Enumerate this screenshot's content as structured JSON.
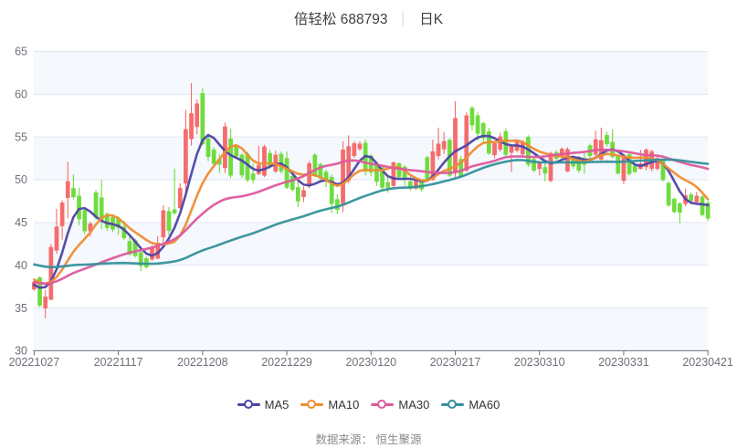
{
  "title": {
    "stock_name": "倍轻松",
    "stock_code": "688793",
    "separator": "│",
    "period": "日K"
  },
  "footer": {
    "text": "数据来源： 恒生聚源"
  },
  "legend": {
    "items": [
      {
        "label": "MA5",
        "color": "#4e43a5"
      },
      {
        "label": "MA10",
        "color": "#ef8c34"
      },
      {
        "label": "MA30",
        "color": "#dc5a9d"
      },
      {
        "label": "MA60",
        "color": "#35919b"
      }
    ]
  },
  "chart_data": {
    "type": "candlestick",
    "title": "倍轻松 688793 日K",
    "x_tick_labels": [
      "20221027",
      "20221117",
      "20221208",
      "20221229",
      "20230120",
      "20230217",
      "20230310",
      "20230331",
      "20230421"
    ],
    "x_tick_every": 15,
    "num_candles": 121,
    "ylim": [
      30,
      65
    ],
    "y_ticks": [
      30,
      35,
      40,
      45,
      50,
      55,
      60,
      65
    ],
    "up_color": "#f56c6c",
    "down_color": "#6fdc3e",
    "grid": true,
    "legend_position": "bottom",
    "ohlc_format": [
      "open",
      "close",
      "low",
      "high"
    ],
    "ohlc": [
      [
        37.2,
        38.0,
        37.0,
        38.4
      ],
      [
        38.55,
        35.3,
        35.1,
        38.7
      ],
      [
        35.0,
        36.3,
        33.8,
        37.1
      ],
      [
        36.0,
        42.1,
        35.9,
        42.5
      ],
      [
        41.75,
        44.5,
        41.35,
        46.6
      ],
      [
        44.6,
        47.3,
        43.0,
        47.6
      ],
      [
        47.9,
        49.8,
        45.5,
        52.1
      ],
      [
        49.0,
        48.0,
        47.7,
        50.6
      ],
      [
        48.1,
        45.4,
        44.7,
        49.1
      ],
      [
        46.4,
        44.0,
        43.6,
        46.6
      ],
      [
        44.0,
        44.85,
        43.4,
        45.1
      ],
      [
        48.5,
        45.6,
        45.3,
        48.8
      ],
      [
        47.9,
        45.3,
        44.2,
        50.0
      ],
      [
        46.0,
        44.4,
        44.0,
        46.2
      ],
      [
        45.6,
        44.2,
        43.9,
        45.9
      ],
      [
        45.5,
        44.4,
        43.6,
        45.7
      ],
      [
        44.5,
        43.2,
        43.0,
        45.2
      ],
      [
        42.8,
        41.3,
        41.1,
        43.5
      ],
      [
        42.9,
        41.1,
        40.9,
        43.1
      ],
      [
        41.5,
        39.95,
        39.3,
        41.7
      ],
      [
        40.8,
        39.8,
        39.6,
        41.0
      ],
      [
        40.7,
        42.1,
        40.5,
        42.3
      ],
      [
        40.8,
        42.6,
        40.7,
        43.4
      ],
      [
        43.3,
        46.4,
        42.5,
        47.0
      ],
      [
        46.3,
        44.05,
        43.5,
        46.8
      ],
      [
        46.5,
        46.1,
        45.9,
        51.3
      ],
      [
        46.7,
        49.0,
        46.6,
        49.6
      ],
      [
        49.6,
        55.9,
        48.3,
        58.2
      ],
      [
        54.8,
        57.75,
        54.0,
        61.3
      ],
      [
        56.2,
        58.9,
        55.3,
        59.4
      ],
      [
        60.1,
        54.2,
        54.0,
        60.7
      ],
      [
        54.8,
        52.7,
        52.2,
        55.1
      ],
      [
        53.5,
        51.9,
        51.6,
        53.8
      ],
      [
        52.4,
        51.8,
        50.8,
        53.0
      ],
      [
        51.4,
        56.2,
        50.8,
        56.7
      ],
      [
        54.8,
        50.5,
        50.2,
        56.0
      ],
      [
        53.95,
        52.75,
        52.5,
        54.15
      ],
      [
        52.9,
        50.55,
        50.2,
        53.1
      ],
      [
        53.0,
        50.0,
        49.7,
        53.3
      ],
      [
        50.7,
        50.0,
        49.6,
        51.9
      ],
      [
        50.7,
        51.7,
        50.55,
        54.0
      ],
      [
        50.5,
        53.85,
        50.3,
        54.1
      ],
      [
        53.1,
        51.6,
        51.3,
        53.5
      ],
      [
        51.0,
        52.9,
        50.8,
        53.4
      ],
      [
        53.0,
        51.0,
        50.7,
        53.3
      ],
      [
        52.5,
        49.1,
        48.9,
        53.3
      ],
      [
        50.4,
        48.85,
        48.6,
        50.8
      ],
      [
        49.1,
        47.5,
        46.8,
        49.9
      ],
      [
        48.0,
        48.75,
        47.4,
        49.2
      ],
      [
        49.3,
        51.9,
        49.0,
        52.2
      ],
      [
        52.9,
        50.6,
        50.3,
        53.1
      ],
      [
        51.8,
        50.2,
        49.7,
        52.0
      ],
      [
        50.9,
        50.0,
        49.15,
        51.2
      ],
      [
        50.3,
        47.2,
        46.1,
        50.6
      ],
      [
        47.7,
        46.5,
        46.0,
        48.3
      ],
      [
        47.2,
        53.5,
        46.2,
        54.5
      ],
      [
        49.9,
        53.9,
        49.6,
        55.2
      ],
      [
        52.8,
        54.24,
        52.6,
        54.5
      ],
      [
        53.6,
        54.2,
        53.4,
        54.5
      ],
      [
        54.3,
        51.0,
        50.5,
        54.7
      ],
      [
        52.8,
        50.9,
        50.4,
        53.0
      ],
      [
        51.8,
        49.8,
        49.3,
        52.0
      ],
      [
        51.4,
        49.1,
        48.8,
        51.6
      ],
      [
        49.7,
        49.1,
        48.5,
        50.3
      ],
      [
        49.3,
        52.0,
        49.1,
        52.15
      ],
      [
        51.9,
        50.35,
        50.1,
        52.05
      ],
      [
        51.5,
        50.0,
        49.3,
        51.7
      ],
      [
        49.8,
        49.0,
        48.7,
        50.4
      ],
      [
        49.0,
        49.9,
        48.8,
        50.1
      ],
      [
        49.8,
        48.9,
        48.6,
        50.0
      ],
      [
        52.6,
        50.0,
        49.8,
        52.8
      ],
      [
        50.0,
        53.3,
        49.9,
        54.7
      ],
      [
        52.8,
        54.2,
        52.4,
        56.1
      ],
      [
        53.6,
        54.5,
        53.0,
        55.6
      ],
      [
        54.65,
        50.5,
        50.3,
        54.85
      ],
      [
        50.9,
        57.2,
        50.3,
        59.2
      ],
      [
        52.4,
        50.4,
        50.2,
        52.8
      ],
      [
        51.1,
        57.5,
        50.9,
        57.9
      ],
      [
        58.4,
        56.4,
        55.8,
        58.6
      ],
      [
        57.5,
        55.4,
        54.6,
        57.9
      ],
      [
        56.6,
        54.9,
        54.2,
        56.8
      ],
      [
        55.65,
        53.1,
        52.9,
        56.1
      ],
      [
        52.9,
        54.25,
        52.5,
        54.5
      ],
      [
        53.55,
        55.04,
        53.3,
        55.5
      ],
      [
        55.65,
        52.95,
        52.7,
        56.0
      ],
      [
        53.2,
        53.9,
        50.9,
        54.1
      ],
      [
        53.45,
        54.4,
        53.2,
        54.7
      ],
      [
        53.0,
        54.4,
        52.6,
        54.6
      ],
      [
        55.0,
        51.8,
        51.5,
        55.2
      ],
      [
        52.4,
        51.1,
        50.9,
        52.6
      ],
      [
        51.3,
        52.0,
        50.5,
        52.15
      ],
      [
        51.45,
        50.75,
        49.8,
        52.2
      ],
      [
        49.9,
        53.1,
        49.7,
        53.3
      ],
      [
        53.2,
        52.5,
        52.2,
        53.5
      ],
      [
        52.7,
        53.6,
        52.4,
        53.8
      ],
      [
        51.0,
        53.55,
        50.9,
        53.8
      ],
      [
        52.7,
        51.6,
        51.3,
        52.9
      ],
      [
        52.6,
        51.1,
        50.8,
        52.8
      ],
      [
        52.5,
        51.8,
        50.7,
        53.3
      ],
      [
        54.0,
        52.8,
        52.5,
        54.25
      ],
      [
        52.95,
        54.7,
        52.7,
        55.75
      ],
      [
        52.4,
        54.6,
        52.2,
        56.1
      ],
      [
        55.2,
        54.2,
        53.9,
        55.6
      ],
      [
        54.4,
        52.7,
        52.5,
        55.9
      ],
      [
        52.75,
        50.75,
        50.6,
        52.9
      ],
      [
        49.9,
        52.55,
        49.5,
        52.8
      ],
      [
        52.95,
        50.7,
        50.5,
        53.1
      ],
      [
        51.6,
        50.95,
        50.75,
        52.0
      ],
      [
        51.3,
        51.85,
        51.2,
        53.5
      ],
      [
        51.5,
        53.5,
        51.1,
        53.7
      ],
      [
        51.3,
        53.3,
        51.0,
        53.5
      ],
      [
        51.3,
        52.5,
        51.1,
        52.7
      ],
      [
        52.35,
        50.0,
        49.8,
        52.5
      ],
      [
        49.6,
        47.05,
        46.8,
        49.8
      ],
      [
        47.75,
        46.25,
        46.1,
        47.9
      ],
      [
        47.2,
        46.2,
        44.9,
        47.4
      ],
      [
        47.2,
        48.15,
        46.9,
        49.0
      ],
      [
        48.25,
        47.5,
        47.2,
        48.5
      ],
      [
        47.4,
        48.1,
        47.1,
        48.6
      ],
      [
        48.0,
        45.9,
        45.7,
        48.2
      ],
      [
        47.3,
        45.5,
        45.2,
        47.5
      ]
    ],
    "series": [
      {
        "name": "MA5",
        "color": "#4e43a5",
        "values": [
          37.7,
          37.38,
          37.44,
          38.14,
          39.52,
          41.48,
          43.75,
          45.63,
          46.59,
          46.68,
          46.27,
          45.68,
          45.19,
          44.93,
          44.81,
          44.61,
          44.16,
          43.52,
          42.77,
          42.0,
          41.36,
          41.12,
          41.42,
          42.16,
          43.15,
          44.4,
          46.09,
          48.27,
          50.71,
          53.01,
          54.64,
          55.23,
          54.89,
          54.11,
          53.37,
          52.87,
          52.57,
          52.25,
          51.76,
          51.26,
          51.08,
          51.24,
          51.54,
          51.85,
          51.89,
          51.48,
          50.73,
          49.94,
          49.43,
          49.33,
          49.53,
          49.82,
          49.95,
          49.74,
          49.48,
          49.65,
          50.31,
          51.25,
          52.23,
          52.79,
          52.64,
          51.93,
          51.07,
          50.42,
          50.15,
          50.1,
          50.11,
          50.11,
          50.0,
          49.83,
          49.89,
          50.4,
          51.2,
          52.02,
          52.76,
          53.33,
          53.68,
          54.03,
          54.52,
          54.94,
          55.13,
          55.1,
          54.86,
          54.5,
          54.17,
          54.03,
          54.01,
          53.89,
          53.55,
          53.11,
          52.64,
          52.19,
          51.95,
          52.04,
          52.33,
          52.6,
          52.66,
          52.53,
          52.36,
          52.34,
          52.56,
          53.0,
          53.42,
          53.55,
          53.32,
          52.84,
          52.24,
          51.76,
          51.64,
          51.82,
          52.08,
          52.18,
          51.88,
          51.04,
          49.84,
          48.63,
          47.75,
          47.3,
          47.18,
          47.13,
          47.03
        ]
      },
      {
        "name": "MA10",
        "color": "#ef8c34",
        "values": [
          38.32,
          37.99,
          37.85,
          38.08,
          38.64,
          39.49,
          40.57,
          41.59,
          42.39,
          43.08,
          43.84,
          44.76,
          45.52,
          45.85,
          45.82,
          45.5,
          44.94,
          44.33,
          43.85,
          43.41,
          42.96,
          42.59,
          42.42,
          42.45,
          42.54,
          42.76,
          43.46,
          44.75,
          46.42,
          48.14,
          49.6,
          50.73,
          51.59,
          52.4,
          53.25,
          53.87,
          54.03,
          53.67,
          52.92,
          52.22,
          51.9,
          51.89,
          51.93,
          51.84,
          51.58,
          51.28,
          50.98,
          50.69,
          50.6,
          50.64,
          50.54,
          50.29,
          49.98,
          49.54,
          49.28,
          49.52,
          50.05,
          50.65,
          51.06,
          51.16,
          51.14,
          51.11,
          51.1,
          51.31,
          51.55,
          51.44,
          51.04,
          50.57,
          50.17,
          49.94,
          49.92,
          50.2,
          50.68,
          51.04,
          51.27,
          51.59,
          51.99,
          52.59,
          53.29,
          53.9,
          54.3,
          54.41,
          54.42,
          54.52,
          54.57,
          54.56,
          54.6,
          54.43,
          54.02,
          53.61,
          53.3,
          53.09,
          52.91,
          52.77,
          52.73,
          52.66,
          52.43,
          52.19,
          52.15,
          52.31,
          52.58,
          52.87,
          53.02,
          52.99,
          52.83,
          52.68,
          52.61,
          52.58,
          52.6,
          52.6,
          52.49,
          52.25,
          51.84,
          51.34,
          50.81,
          50.32,
          49.95,
          49.62,
          49.16,
          48.49,
          47.71
        ]
      },
      {
        "name": "MA30",
        "color": "#dc5a9d",
        "values": [
          38.03,
          37.9,
          37.85,
          37.92,
          38.12,
          38.41,
          38.77,
          39.09,
          39.35,
          39.59,
          39.83,
          40.09,
          40.35,
          40.6,
          40.83,
          41.06,
          41.28,
          41.46,
          41.62,
          41.76,
          41.91,
          42.06,
          42.26,
          42.5,
          42.75,
          43.05,
          43.49,
          44.1,
          44.79,
          45.46,
          46.04,
          46.59,
          47.06,
          47.44,
          47.73,
          47.89,
          47.98,
          48.07,
          48.21,
          48.39,
          48.61,
          48.85,
          49.1,
          49.35,
          49.57,
          49.76,
          49.94,
          50.15,
          50.43,
          50.79,
          51.14,
          51.43,
          51.63,
          51.75,
          51.89,
          52.1,
          52.26,
          52.27,
          52.17,
          52.0,
          51.87,
          51.76,
          51.64,
          51.51,
          51.38,
          51.3,
          51.21,
          51.12,
          51.07,
          51.0,
          50.91,
          50.85,
          50.83,
          50.79,
          50.8,
          50.89,
          51.05,
          51.31,
          51.57,
          51.74,
          51.89,
          52.03,
          52.21,
          52.45,
          52.64,
          52.72,
          52.74,
          52.72,
          52.68,
          52.66,
          52.68,
          52.74,
          52.84,
          52.93,
          53.01,
          53.08,
          53.14,
          53.19,
          53.26,
          53.37,
          53.47,
          53.52,
          53.5,
          53.46,
          53.4,
          53.32,
          53.23,
          53.1,
          52.97,
          52.9,
          52.86,
          52.82,
          52.7,
          52.5,
          52.29,
          52.08,
          51.89,
          51.72,
          51.59,
          51.45,
          51.27
        ]
      },
      {
        "name": "MA60",
        "color": "#35919b",
        "values": [
          40.1,
          39.95,
          39.83,
          39.78,
          39.79,
          39.85,
          39.94,
          40.01,
          40.05,
          40.07,
          40.1,
          40.14,
          40.18,
          40.21,
          40.24,
          40.26,
          40.27,
          40.25,
          40.22,
          40.19,
          40.17,
          40.17,
          40.2,
          40.27,
          40.35,
          40.45,
          40.61,
          40.86,
          41.16,
          41.47,
          41.74,
          41.97,
          42.18,
          42.41,
          42.66,
          42.89,
          43.12,
          43.34,
          43.54,
          43.75,
          43.99,
          44.25,
          44.5,
          44.75,
          44.98,
          45.17,
          45.36,
          45.54,
          45.73,
          45.96,
          46.18,
          46.38,
          46.55,
          46.7,
          46.85,
          47.07,
          47.33,
          47.61,
          47.88,
          48.11,
          48.33,
          48.56,
          48.76,
          48.9,
          49.0,
          49.06,
          49.08,
          49.11,
          49.17,
          49.25,
          49.36,
          49.49,
          49.65,
          49.81,
          49.98,
          50.16,
          50.36,
          50.6,
          50.88,
          51.15,
          51.4,
          51.62,
          51.81,
          51.98,
          52.12,
          52.24,
          52.31,
          52.3,
          52.21,
          52.11,
          52.05,
          52.03,
          52.04,
          52.04,
          52.03,
          52.04,
          52.03,
          52.02,
          52.04,
          52.07,
          52.09,
          52.11,
          52.12,
          52.11,
          52.1,
          52.13,
          52.16,
          52.2,
          52.24,
          52.27,
          52.3,
          52.33,
          52.34,
          52.35,
          52.34,
          52.27,
          52.18,
          52.09,
          52.01,
          51.94,
          51.87
        ]
      }
    ]
  }
}
